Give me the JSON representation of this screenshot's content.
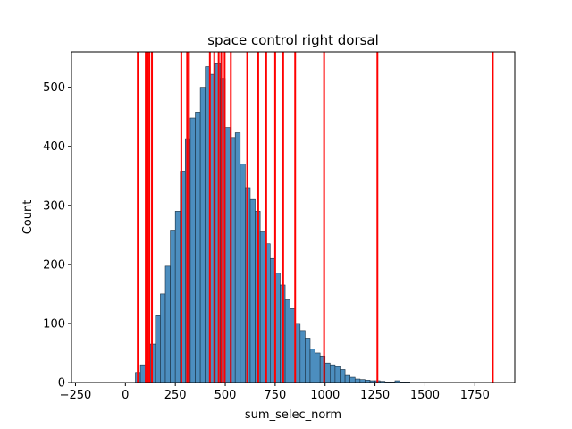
{
  "chart_data": {
    "type": "bar",
    "title": "space control right dorsal",
    "xlabel": "sum_selec_norm",
    "ylabel": "Count",
    "xlim": [
      -270,
      1950
    ],
    "ylim": [
      0,
      560
    ],
    "x_ticks": [
      -250,
      0,
      250,
      500,
      750,
      1000,
      1250,
      1500,
      1750
    ],
    "y_ticks": [
      0,
      100,
      200,
      300,
      400,
      500
    ],
    "grid": false,
    "bin_width": 25,
    "bin_starts": [
      50,
      75,
      100,
      125,
      150,
      175,
      200,
      225,
      250,
      275,
      300,
      325,
      350,
      375,
      400,
      425,
      450,
      475,
      500,
      525,
      550,
      575,
      600,
      625,
      650,
      675,
      700,
      725,
      750,
      775,
      800,
      825,
      850,
      875,
      900,
      925,
      950,
      975,
      1000,
      1025,
      1050,
      1075,
      1100,
      1125,
      1150,
      1175,
      1200,
      1225,
      1250,
      1275,
      1300,
      1325,
      1350,
      1375,
      1400
    ],
    "values": [
      17,
      30,
      35,
      65,
      113,
      150,
      197,
      258,
      290,
      358,
      413,
      448,
      458,
      500,
      535,
      522,
      540,
      515,
      432,
      415,
      423,
      370,
      330,
      310,
      290,
      255,
      235,
      210,
      185,
      165,
      140,
      125,
      100,
      88,
      75,
      57,
      50,
      45,
      33,
      30,
      27,
      22,
      12,
      9,
      6,
      5,
      4,
      3,
      3,
      2,
      1,
      1,
      3,
      1,
      1
    ],
    "bar_color": "#4c8ebf",
    "vlines": [
      62,
      102,
      112,
      120,
      133,
      280,
      309,
      318,
      423,
      445,
      467,
      480,
      497,
      528,
      610,
      665,
      705,
      750,
      790,
      850,
      995,
      1262,
      1840
    ],
    "vline_color": "#ff0000"
  }
}
